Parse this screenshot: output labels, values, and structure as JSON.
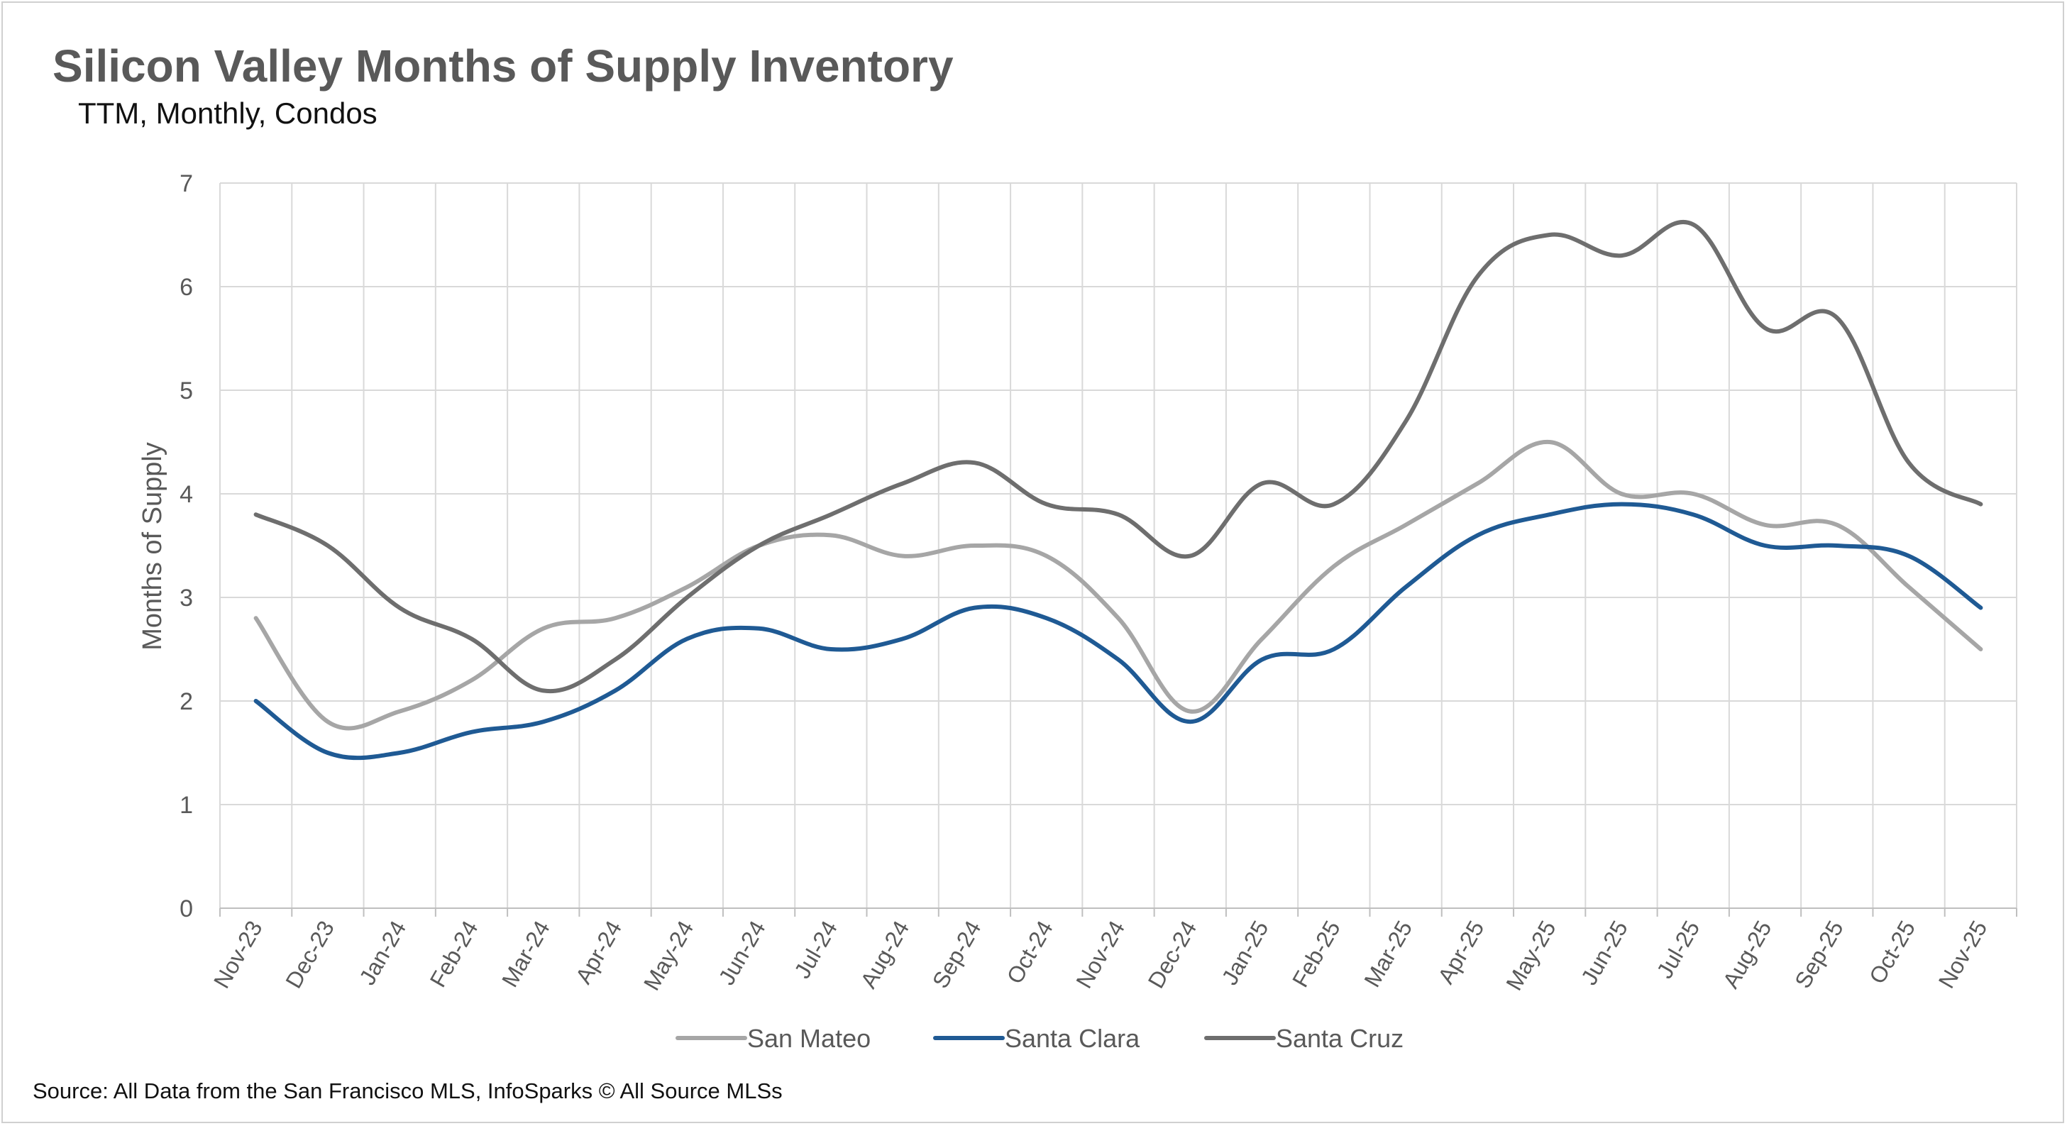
{
  "chart_data": {
    "type": "line",
    "title": "Silicon Valley Months of Supply Inventory",
    "subtitle": "TTM, Monthly, Condos",
    "ylabel": "Months of Supply",
    "xlabel": "",
    "ylim": [
      0,
      7
    ],
    "yticks": [
      0,
      1,
      2,
      3,
      4,
      5,
      6,
      7
    ],
    "grid": true,
    "legend_position": "bottom",
    "categories": [
      "Nov-23",
      "Dec-23",
      "Jan-24",
      "Feb-24",
      "Mar-24",
      "Apr-24",
      "May-24",
      "Jun-24",
      "Jul-24",
      "Aug-24",
      "Sep-24",
      "Oct-24",
      "Nov-24",
      "Dec-24",
      "Jan-25",
      "Feb-25",
      "Mar-25",
      "Apr-25",
      "May-25",
      "Jun-25",
      "Jul-25",
      "Aug-25",
      "Sep-25",
      "Oct-25",
      "Nov-25"
    ],
    "series": [
      {
        "name": "San Mateo",
        "color": "#a6a6a6",
        "values": [
          2.8,
          1.8,
          1.9,
          2.2,
          2.7,
          2.8,
          3.1,
          3.5,
          3.6,
          3.4,
          3.5,
          3.4,
          2.8,
          1.9,
          2.6,
          3.3,
          3.7,
          4.1,
          4.5,
          4.0,
          4.0,
          3.7,
          3.7,
          3.1,
          2.5
        ]
      },
      {
        "name": "Santa Clara",
        "color": "#1f5a94",
        "values": [
          2.0,
          1.5,
          1.5,
          1.7,
          1.8,
          2.1,
          2.6,
          2.7,
          2.5,
          2.6,
          2.9,
          2.8,
          2.4,
          1.8,
          2.4,
          2.5,
          3.1,
          3.6,
          3.8,
          3.9,
          3.8,
          3.5,
          3.5,
          3.4,
          2.9
        ]
      },
      {
        "name": "Santa Cruz",
        "color": "#6e6e6e",
        "values": [
          3.8,
          3.5,
          2.9,
          2.6,
          2.1,
          2.4,
          3.0,
          3.5,
          3.8,
          4.1,
          4.3,
          3.9,
          3.8,
          3.4,
          4.1,
          3.9,
          4.7,
          6.1,
          6.5,
          6.3,
          6.6,
          5.6,
          5.7,
          4.3,
          3.9
        ]
      }
    ],
    "source": "Source: All Data from the San Francisco MLS, InfoSparks © All Source MLSs"
  }
}
